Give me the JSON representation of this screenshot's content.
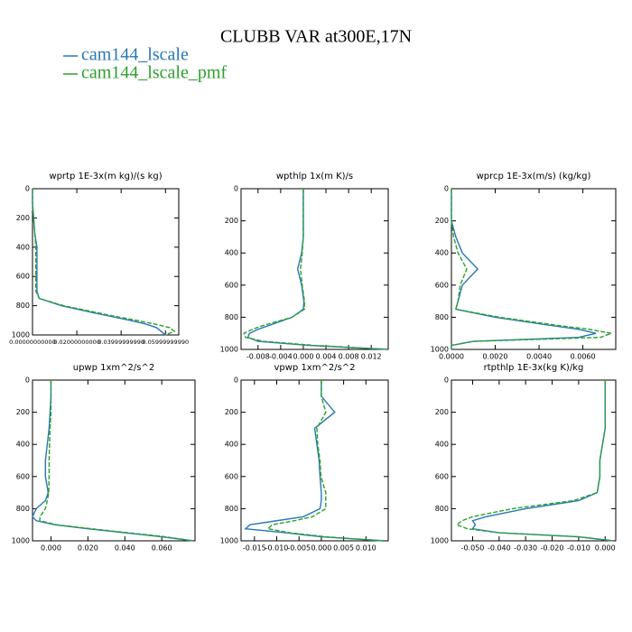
{
  "title": "CLUBB VAR at300E,17N",
  "chart_data": [
    {
      "type": "line",
      "title": "wprtp  1E-3x(m kg)/(s kg)",
      "levels": [
        0,
        100,
        200,
        300,
        400,
        500,
        600,
        700,
        750,
        800,
        850,
        875,
        900,
        925,
        950,
        975,
        1000
      ],
      "series": [
        {
          "name": "cam144_lscale",
          "color": "#2878b5",
          "values": [
            0,
            0,
            0.0005,
            0.001,
            0.002,
            0.002,
            0.002,
            0.002,
            0.003,
            0.013,
            0.028,
            0.036,
            0.044,
            0.051,
            0.056,
            0.058,
            0.06
          ]
        },
        {
          "name": "cam144_lscale_pmf",
          "color": "#2ca02c",
          "values": [
            0,
            0,
            0.0005,
            0.001,
            0.0015,
            0.0015,
            0.0015,
            0.0015,
            0.003,
            0.014,
            0.03,
            0.038,
            0.047,
            0.055,
            0.062,
            0.064,
            0.06
          ]
        }
      ],
      "xlim": [
        0,
        0.066
      ],
      "xticks": [
        {
          "value": 0,
          "label": "0.00000000000"
        },
        {
          "value": 0.02,
          "label": "0.02000000000"
        },
        {
          "value": 0.04,
          "label": "0.03999999990"
        },
        {
          "value": 0.06,
          "label": "0.05999999990"
        }
      ],
      "ylim": [
        0,
        1000
      ],
      "yticks": [
        0,
        200,
        400,
        600,
        800,
        1000
      ],
      "invert_y": true
    },
    {
      "type": "line",
      "title": "wpthlp  1x(m K)/s",
      "levels": [
        0,
        100,
        200,
        300,
        400,
        500,
        600,
        700,
        750,
        800,
        850,
        875,
        900,
        925,
        950,
        975,
        1000
      ],
      "series": [
        {
          "name": "cam144_lscale",
          "color": "#2878b5",
          "values": [
            0,
            0,
            0,
            0,
            -0.0003,
            -0.001,
            -0.0003,
            0.0001,
            0,
            -0.002,
            -0.006,
            -0.008,
            -0.0095,
            -0.0098,
            -0.008,
            0.001,
            0.015
          ]
        },
        {
          "name": "cam144_lscale_pmf",
          "color": "#2ca02c",
          "values": [
            0,
            0,
            0,
            0,
            -0.0002,
            -0.0005,
            -0.0002,
            0.0002,
            0.0002,
            -0.002,
            -0.007,
            -0.009,
            -0.0105,
            -0.0102,
            -0.007,
            0.002,
            0.015
          ]
        }
      ],
      "xlim": [
        -0.011,
        0.015
      ],
      "xticks": [
        -0.008,
        -0.004,
        {
          "value": 0,
          "label": "0.000"
        },
        0.004,
        0.008,
        0.012
      ],
      "ylim": [
        0,
        1000
      ],
      "yticks": [
        0,
        200,
        400,
        600,
        800,
        1000
      ],
      "invert_y": true
    },
    {
      "type": "line",
      "title": "wprcp  1E-3x(m/s) (kg/kg)",
      "levels": [
        0,
        100,
        200,
        300,
        400,
        500,
        600,
        700,
        750,
        800,
        850,
        875,
        900,
        925,
        950,
        975,
        1000
      ],
      "series": [
        {
          "name": "cam144_lscale",
          "color": "#2878b5",
          "values": [
            0,
            0,
            0,
            0.0002,
            0.0005,
            0.0012,
            0.0005,
            0.0003,
            0.0002,
            0.002,
            0.0045,
            0.0058,
            0.0066,
            0.0058,
            0.001,
            0,
            0
          ]
        },
        {
          "name": "cam144_lscale_pmf",
          "color": "#2ca02c",
          "values": [
            0,
            0,
            0,
            0.0001,
            0.0003,
            0.0007,
            0.0004,
            0.0003,
            0.0002,
            0.0022,
            0.0048,
            0.0063,
            0.0073,
            0.0068,
            0.001,
            0,
            0
          ]
        }
      ],
      "xlim": [
        0,
        0.0075
      ],
      "xticks": [
        {
          "value": 0,
          "label": "0.0000"
        },
        {
          "value": 0.002,
          "label": "0.0020"
        },
        {
          "value": 0.004,
          "label": "0.0040"
        },
        {
          "value": 0.006,
          "label": "0.0060"
        }
      ],
      "ylim": [
        0,
        1000
      ],
      "yticks": [
        0,
        200,
        400,
        600,
        800,
        1000
      ],
      "invert_y": true
    },
    {
      "type": "line",
      "title": "upwp  1xm^2/s^2",
      "levels": [
        0,
        100,
        200,
        300,
        400,
        500,
        600,
        700,
        750,
        800,
        850,
        875,
        900,
        925,
        950,
        975,
        1000
      ],
      "series": [
        {
          "name": "cam144_lscale",
          "color": "#2878b5",
          "values": [
            0,
            0,
            -0.0005,
            -0.001,
            -0.002,
            -0.003,
            -0.003,
            -0.0015,
            -0.003,
            -0.008,
            -0.01,
            -0.008,
            0.002,
            0.02,
            0.04,
            0.06,
            0.077
          ]
        },
        {
          "name": "cam144_lscale_pmf",
          "color": "#2ca02c",
          "values": [
            0,
            0,
            0,
            -0.0005,
            -0.0008,
            -0.001,
            -0.001,
            -0.0012,
            -0.002,
            -0.003,
            -0.006,
            -0.006,
            0.003,
            0.022,
            0.042,
            0.062,
            0.077
          ]
        }
      ],
      "xlim": [
        -0.01,
        0.078
      ],
      "xticks": [
        {
          "value": 0,
          "label": "0.000"
        },
        {
          "value": 0.02,
          "label": "0.020"
        },
        {
          "value": 0.04,
          "label": "0.040"
        },
        {
          "value": 0.06,
          "label": "0.060"
        }
      ],
      "ylim": [
        0,
        1000
      ],
      "yticks": [
        0,
        200,
        400,
        600,
        800,
        1000
      ],
      "invert_y": true
    },
    {
      "type": "line",
      "title": "vpwp  1xm^2/s^2",
      "levels": [
        0,
        100,
        200,
        300,
        400,
        500,
        600,
        700,
        750,
        800,
        850,
        875,
        900,
        925,
        950,
        975,
        1000
      ],
      "series": [
        {
          "name": "cam144_lscale",
          "color": "#2878b5",
          "values": [
            0,
            0,
            0.003,
            -0.0015,
            -0.001,
            -0.0005,
            -0.0003,
            0,
            0,
            -0.0003,
            -0.004,
            -0.01,
            -0.016,
            -0.017,
            -0.008,
            0,
            0.014
          ]
        },
        {
          "name": "cam144_lscale_pmf",
          "color": "#2ca02c",
          "values": [
            0,
            0,
            0.001,
            -0.001,
            -0.0008,
            -0.0003,
            -0.0001,
            0.001,
            0.001,
            0.001,
            -0.002,
            -0.006,
            -0.011,
            -0.012,
            -0.007,
            0.001,
            0.014
          ]
        }
      ],
      "xlim": [
        -0.018,
        0.015
      ],
      "xticks": [
        -0.015,
        {
          "value": -0.01,
          "label": "-0.010"
        },
        -0.005,
        {
          "value": 0,
          "label": "0.000"
        },
        0.005,
        {
          "value": 0.01,
          "label": "0.010"
        }
      ],
      "ylim": [
        0,
        1000
      ],
      "yticks": [
        0,
        200,
        400,
        600,
        800,
        1000
      ],
      "invert_y": true
    },
    {
      "type": "line",
      "title": "rtpthlp  1E-3x(kg K)/kg",
      "levels": [
        0,
        100,
        200,
        300,
        400,
        500,
        600,
        700,
        750,
        800,
        850,
        875,
        900,
        925,
        950,
        975,
        1000
      ],
      "series": [
        {
          "name": "cam144_lscale",
          "color": "#2878b5",
          "values": [
            0,
            0,
            0,
            0,
            -0.001,
            -0.002,
            -0.002,
            -0.003,
            -0.01,
            -0.03,
            -0.045,
            -0.05,
            -0.049,
            -0.05,
            -0.04,
            -0.01,
            0.003
          ]
        },
        {
          "name": "cam144_lscale_pmf",
          "color": "#2ca02c",
          "values": [
            0,
            0,
            0,
            0,
            -0.001,
            -0.002,
            -0.002,
            -0.003,
            -0.012,
            -0.035,
            -0.05,
            -0.054,
            -0.056,
            -0.052,
            -0.04,
            -0.01,
            0.003
          ]
        }
      ],
      "xlim": [
        -0.058,
        0.004
      ],
      "xticks": [
        {
          "value": -0.05,
          "label": "-0.050"
        },
        {
          "value": -0.04,
          "label": "-0.040"
        },
        {
          "value": -0.03,
          "label": "-0.030"
        },
        {
          "value": -0.02,
          "label": "-0.020"
        },
        {
          "value": -0.01,
          "label": "-0.010"
        },
        {
          "value": 0,
          "label": "0.000"
        }
      ],
      "ylim": [
        0,
        1000
      ],
      "yticks": [
        0,
        200,
        400,
        600,
        800,
        1000
      ],
      "invert_y": true
    }
  ]
}
